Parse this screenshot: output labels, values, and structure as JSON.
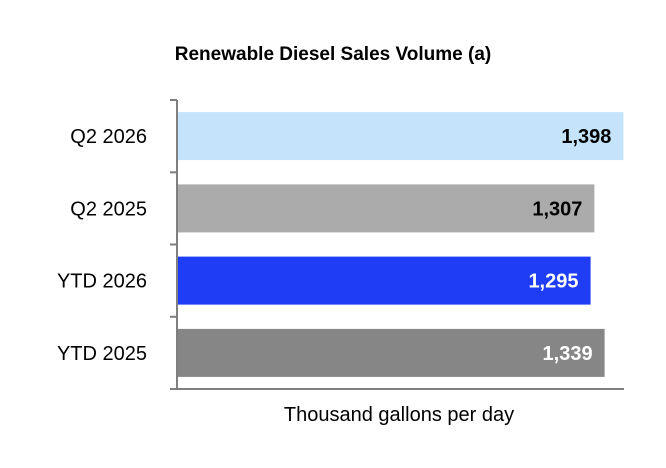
{
  "chart_data": {
    "type": "bar",
    "orientation": "horizontal",
    "title": "Renewable Diesel Sales Volume (a)",
    "xlabel": "Thousand gallons per day",
    "ylabel": "",
    "categories": [
      "Q2 2026",
      "Q2 2025",
      "YTD 2026",
      "YTD 2025"
    ],
    "values": [
      1398,
      1307,
      1295,
      1339
    ],
    "value_labels": [
      "1,398",
      "1,307",
      "1,295",
      "1,339"
    ],
    "bar_colors": [
      "#C5E3FA",
      "#ABABAB",
      "#1F3DF5",
      "#868686"
    ],
    "label_colors": [
      "#000000",
      "#000000",
      "#FFFFFF",
      "#FFFFFF"
    ],
    "xlim": [
      0,
      1400
    ],
    "grid": false,
    "legend": "none"
  }
}
